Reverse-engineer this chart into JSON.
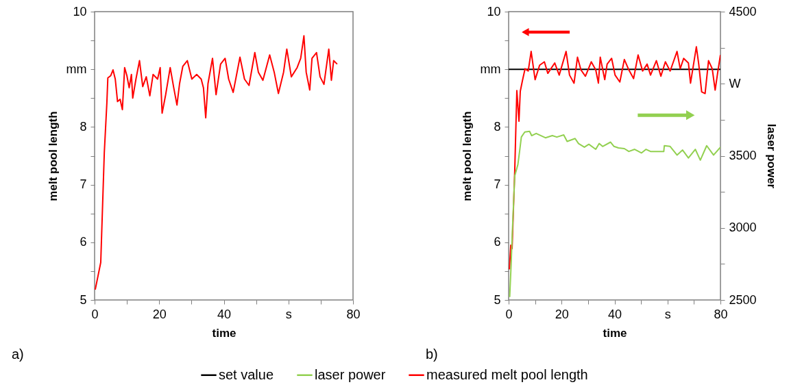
{
  "chart_data": [
    {
      "type": "line",
      "xlabel": "time",
      "ylabel": "melt pool length",
      "xlim": [
        0,
        80
      ],
      "xticks": [
        0,
        {
          "value": 10,
          "label": null
        },
        20,
        {
          "value": 30,
          "label": null
        },
        40,
        {
          "value": 50,
          "label": null
        },
        {
          "value": 60,
          "label": "s"
        },
        {
          "value": 70,
          "label": null
        },
        80
      ],
      "ylim": [
        5,
        10
      ],
      "yticks": [
        5,
        {
          "value": 5.5,
          "label": null
        },
        6,
        {
          "value": 6.5,
          "label": null
        },
        7,
        {
          "value": 7.5,
          "label": null
        },
        8,
        {
          "value": 8.5,
          "label": null
        },
        {
          "value": 9,
          "label": "mm"
        },
        {
          "value": 9.5,
          "label": null
        },
        10
      ],
      "annotations": [
        "a)"
      ],
      "series": [
        {
          "color": "#ff0000",
          "x": [
            0.2,
            1.9,
            3.0,
            3.8,
            4.1,
            5.0,
            5.7,
            6.4,
            7.1,
            7.9,
            8.6,
            9.3,
            10.0,
            10.7,
            11.4,
            11.8,
            12.8,
            13.9,
            14.9,
            16.0,
            17.1,
            18.1,
            19.5,
            20.3,
            20.9,
            22.0,
            23.4,
            24.5,
            25.5,
            26.3,
            27.3,
            28.7,
            30.1,
            31.6,
            33.0,
            33.7,
            34.4,
            35.1,
            36.5,
            37.6,
            39.0,
            40.4,
            41.5,
            42.9,
            45.0,
            46.4,
            47.8,
            49.6,
            50.7,
            52.1,
            54.2,
            55.6,
            56.9,
            58.5,
            59.5,
            60.9,
            62.7,
            63.8,
            64.8,
            65.5,
            66.6,
            67.3,
            68.7,
            69.8,
            71.0,
            72.5,
            73.3,
            74.0,
            75.1
          ],
          "values": [
            5.18,
            5.65,
            7.55,
            8.42,
            8.85,
            8.89,
            8.99,
            8.83,
            8.44,
            8.48,
            8.3,
            9.03,
            8.89,
            8.68,
            8.91,
            8.5,
            8.83,
            9.15,
            8.7,
            8.87,
            8.54,
            8.91,
            8.83,
            9.03,
            8.24,
            8.56,
            9.03,
            8.68,
            8.38,
            8.75,
            9.05,
            9.15,
            8.83,
            8.91,
            8.83,
            8.68,
            8.16,
            8.75,
            9.19,
            8.56,
            9.09,
            9.19,
            8.83,
            8.6,
            9.21,
            8.83,
            8.72,
            9.29,
            8.95,
            8.81,
            9.25,
            8.95,
            8.58,
            8.95,
            9.35,
            8.87,
            9.03,
            9.19,
            9.58,
            8.95,
            8.64,
            9.19,
            9.29,
            8.87,
            8.74,
            9.35,
            8.81,
            9.15,
            9.09
          ]
        }
      ]
    },
    {
      "type": "line",
      "xlabel": "time",
      "ylabel": "melt pool length",
      "y2label": "laser power",
      "xlim": [
        0,
        80
      ],
      "xticks": [
        0,
        {
          "value": 10,
          "label": null
        },
        20,
        {
          "value": 30,
          "label": null
        },
        40,
        {
          "value": 50,
          "label": null
        },
        {
          "value": 60,
          "label": "s"
        },
        {
          "value": 70,
          "label": null
        },
        80
      ],
      "ylim": [
        5,
        10
      ],
      "yticks": [
        5,
        {
          "value": 5.5,
          "label": null
        },
        6,
        {
          "value": 6.5,
          "label": null
        },
        7,
        {
          "value": 7.5,
          "label": null
        },
        8,
        {
          "value": 8.5,
          "label": null
        },
        {
          "value": 9,
          "label": "mm"
        },
        {
          "value": 9.5,
          "label": null
        },
        10
      ],
      "y2lim": [
        2500,
        4500
      ],
      "y2ticks": [
        2500,
        {
          "value": 2750,
          "label": null
        },
        3000,
        {
          "value": 3250,
          "label": null
        },
        3500,
        {
          "value": 3750,
          "label": null
        },
        {
          "value": 4000,
          "label": "W"
        },
        {
          "value": 4250,
          "label": null
        },
        4500
      ],
      "legend": "bottom",
      "annotations": [
        "b)"
      ],
      "series": [
        {
          "name": "set value",
          "color": "#000000",
          "x": [
            0,
            80
          ],
          "values": [
            9,
            9
          ]
        },
        {
          "name": "laser power",
          "color": "#92d050",
          "axis": "y2",
          "x": [
            0.4,
            0.9,
            1.4,
            2.3,
            3.5,
            4.2,
            4.8,
            6.1,
            7.9,
            8.7,
            10.4,
            13.9,
            16.5,
            18.2,
            20.8,
            22.1,
            25.1,
            26.4,
            28.6,
            30.3,
            32.9,
            34.2,
            35.5,
            38.5,
            39.8,
            41.5,
            43.7,
            45.4,
            47.6,
            50.2,
            51.9,
            53.6,
            58.6,
            58.8,
            61.0,
            63.6,
            65.7,
            67.9,
            70.5,
            72.4,
            74.8,
            77.4,
            80.0
          ],
          "values": [
            2520,
            2730,
            2970,
            3360,
            3440,
            3540,
            3630,
            3665,
            3670,
            3640,
            3655,
            3625,
            3640,
            3630,
            3645,
            3600,
            3620,
            3585,
            3560,
            3580,
            3545,
            3585,
            3565,
            3595,
            3565,
            3555,
            3550,
            3530,
            3545,
            3520,
            3545,
            3530,
            3530,
            3570,
            3565,
            3505,
            3540,
            3485,
            3545,
            3470,
            3570,
            3505,
            3560
          ]
        },
        {
          "name": "measured melt pool length",
          "color": "#ff0000",
          "x": [
            0.3,
            0.8,
            1.3,
            2.3,
            3.1,
            3.9,
            4.4,
            5.2,
            6.2,
            7.4,
            8.5,
            10.0,
            11.7,
            13.5,
            14.8,
            17.4,
            19.1,
            21.7,
            23.0,
            24.7,
            26.0,
            27.3,
            29.0,
            31.2,
            32.9,
            33.9,
            34.6,
            36.3,
            37.2,
            38.9,
            40.2,
            42.0,
            43.7,
            45.4,
            47.2,
            48.9,
            50.6,
            52.3,
            53.6,
            55.8,
            57.5,
            59.2,
            61.0,
            63.6,
            64.8,
            66.1,
            67.9,
            68.7,
            70.9,
            71.8,
            72.9,
            74.2,
            75.5,
            76.9,
            78.0,
            79.1,
            80.0
          ],
          "values": [
            5.53,
            5.95,
            5.89,
            7.23,
            8.63,
            8.1,
            8.62,
            8.8,
            9.01,
            8.97,
            9.31,
            8.82,
            9.07,
            9.13,
            8.93,
            9.11,
            8.9,
            9.31,
            8.9,
            8.76,
            9.21,
            8.99,
            8.88,
            9.13,
            8.99,
            8.76,
            9.21,
            8.82,
            9.09,
            9.19,
            8.9,
            8.78,
            9.17,
            8.99,
            8.84,
            9.25,
            8.97,
            9.09,
            8.9,
            9.15,
            8.88,
            9.13,
            8.97,
            9.31,
            9.01,
            9.19,
            9.11,
            8.76,
            9.39,
            9.09,
            8.61,
            8.58,
            9.15,
            9.01,
            8.64,
            8.99,
            9.25
          ]
        }
      ]
    }
  ]
}
